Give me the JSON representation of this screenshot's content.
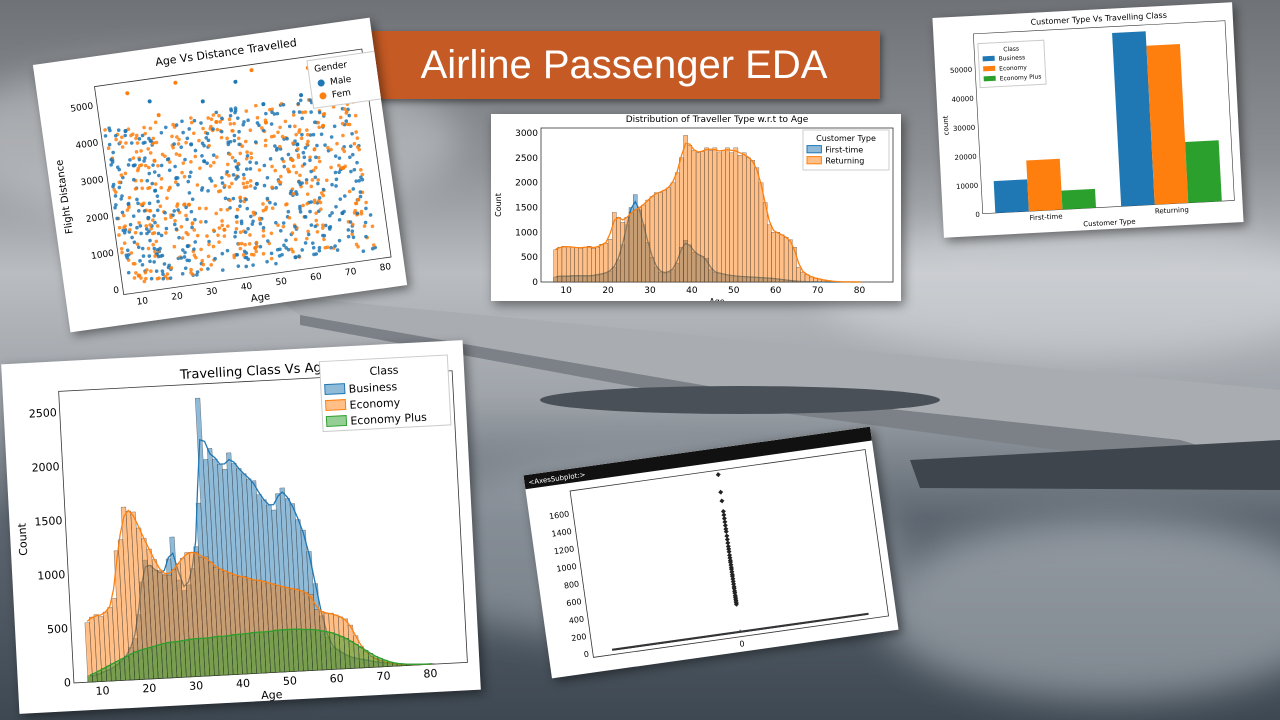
{
  "title": "Airline Passenger EDA",
  "colors": {
    "blue": "#1f77b4",
    "orange": "#ff7f0e",
    "green": "#2ca02c",
    "title_bg": "#c55a24"
  },
  "chart_data": [
    {
      "id": "age_vs_distance",
      "type": "scatter",
      "title": "Age Vs Distance Travelled",
      "xlabel": "Age",
      "ylabel": "Flight Distance",
      "xlim": [
        5,
        82
      ],
      "ylim": [
        -150,
        5500
      ],
      "xticks": [
        "10",
        "20",
        "30",
        "40",
        "50",
        "60",
        "70",
        "80"
      ],
      "yticks": [
        "0",
        "1000",
        "2000",
        "3000",
        "4000",
        "5000"
      ],
      "legend_title": "Gender",
      "legend": [
        "Male",
        "Female"
      ],
      "legend_visible": [
        "Male",
        "Fem"
      ],
      "legend_position": "upper-right",
      "series": [
        {
          "name": "Male",
          "color": "#1f77b4",
          "points": [
            [
              12,
              4200
            ],
            [
              20,
              4900
            ],
            [
              35,
              4700
            ],
            [
              45,
              5100
            ],
            [
              52,
              4400
            ],
            [
              30,
              3600
            ],
            [
              18,
              2500
            ],
            [
              40,
              1500
            ],
            [
              60,
              3200
            ],
            [
              70,
              1200
            ],
            [
              25,
              900
            ],
            [
              55,
              200
            ],
            [
              33,
              3100
            ],
            [
              47,
              2300
            ],
            [
              63,
              4500
            ],
            [
              15,
              1800
            ]
          ]
        },
        {
          "name": "Female",
          "color": "#ff7f0e",
          "points": [
            [
              14,
              5200
            ],
            [
              28,
              5300
            ],
            [
              50,
              5350
            ],
            [
              66,
              5200
            ],
            [
              22,
              4500
            ],
            [
              38,
              4100
            ],
            [
              58,
              2800
            ],
            [
              72,
              2400
            ],
            [
              10,
              300
            ],
            [
              44,
              600
            ],
            [
              68,
              3600
            ],
            [
              27,
              2000
            ],
            [
              36,
              1200
            ],
            [
              52,
              3900
            ],
            [
              75,
              1500
            ],
            [
              19,
              3300
            ]
          ]
        }
      ]
    },
    {
      "id": "traveller_type_age",
      "type": "histogram",
      "title": "Distribution of Traveller Type w.r.t to Age",
      "xlabel": "Age",
      "ylabel": "Count",
      "xlim": [
        4,
        88
      ],
      "ylim": [
        0,
        3100
      ],
      "xticks": [
        10,
        20,
        30,
        40,
        50,
        60,
        70,
        80
      ],
      "yticks": [
        0,
        500,
        1000,
        1500,
        2000,
        2500,
        3000
      ],
      "legend_title": "Customer Type",
      "legend_position": "upper-right",
      "bin_start": 7,
      "bin_width": 1,
      "series": [
        {
          "name": "First-time",
          "color": "#1f77b4",
          "values": [
            100,
            120,
            120,
            110,
            130,
            130,
            120,
            130,
            120,
            130,
            150,
            160,
            180,
            220,
            300,
            450,
            750,
            1150,
            1500,
            1760,
            1450,
            1150,
            800,
            500,
            300,
            200,
            180,
            200,
            250,
            380,
            700,
            840,
            750,
            600,
            550,
            520,
            480,
            250,
            200,
            180,
            160,
            140,
            130,
            120,
            110,
            110,
            100,
            100,
            90,
            90,
            80,
            80,
            70,
            60,
            50,
            40,
            30,
            20,
            15,
            10,
            8,
            5,
            4,
            3,
            2,
            1,
            1,
            1,
            0,
            0,
            0,
            0,
            0,
            0
          ]
        },
        {
          "name": "Returning",
          "color": "#ff7f0e",
          "values": [
            650,
            700,
            720,
            710,
            700,
            700,
            680,
            700,
            720,
            680,
            700,
            760,
            780,
            860,
            1400,
            1300,
            1200,
            1300,
            1400,
            1450,
            1500,
            1550,
            1650,
            1720,
            1800,
            1800,
            1850,
            1900,
            2000,
            2200,
            2500,
            2950,
            2750,
            2650,
            2600,
            2620,
            2700,
            2650,
            2700,
            2600,
            2650,
            2700,
            2600,
            2700,
            2550,
            2600,
            2500,
            2450,
            2300,
            2000,
            1600,
            1150,
            1000,
            1000,
            950,
            900,
            850,
            700,
            300,
            200,
            150,
            100,
            80,
            60,
            40,
            25,
            15,
            10,
            5,
            3,
            2,
            1,
            1,
            0
          ]
        }
      ]
    },
    {
      "id": "customer_type_class",
      "type": "bar",
      "title": "Customer Type Vs Travelling Class",
      "xlabel": "Customer Type",
      "ylabel": "count",
      "categories": [
        "First-time",
        "Returning"
      ],
      "ylim": [
        0,
        62000
      ],
      "yticks": [
        0,
        10000,
        20000,
        30000,
        40000,
        50000
      ],
      "legend_title": "Class",
      "legend_position": "upper-left",
      "series": [
        {
          "name": "Business",
          "color": "#1f77b4",
          "values": [
            11000,
            59800
          ]
        },
        {
          "name": "Economy",
          "color": "#ff7f0e",
          "values": [
            17500,
            54800
          ]
        },
        {
          "name": "Economy Plus",
          "color": "#2ca02c",
          "values": [
            6500,
            21000
          ]
        }
      ]
    },
    {
      "id": "class_vs_age",
      "type": "histogram",
      "title": "Travelling Class Vs Age",
      "xlabel": "Age",
      "ylabel": "Count",
      "xlim": [
        4,
        88
      ],
      "ylim": [
        0,
        2700
      ],
      "xticks": [
        10,
        20,
        30,
        40,
        50,
        60,
        70,
        80
      ],
      "yticks": [
        0,
        500,
        1000,
        1500,
        2000,
        2500
      ],
      "legend_title": "Class",
      "legend_position": "upper-right",
      "bin_start": 7,
      "bin_width": 1,
      "series": [
        {
          "name": "Business",
          "color": "#1f77b4",
          "values": [
            50,
            60,
            70,
            90,
            100,
            120,
            150,
            180,
            220,
            300,
            380,
            600,
            900,
            1100,
            1050,
            1000,
            980,
            950,
            1100,
            1300,
            900,
            800,
            850,
            1000,
            1200,
            1600,
            2570,
            2000,
            2100,
            2000,
            1950,
            1900,
            2050,
            1950,
            1900,
            1850,
            1800,
            1780,
            1650,
            1600,
            1550,
            1500,
            1650,
            1700,
            1600,
            1550,
            1400,
            1300,
            1100,
            800,
            500,
            300,
            200,
            180,
            150,
            120,
            100,
            90,
            80,
            70,
            60,
            50,
            40,
            35,
            30,
            25,
            20,
            15,
            10,
            8,
            6,
            5,
            4,
            3
          ]
        },
        {
          "name": "Economy",
          "color": "#ff7f0e",
          "values": [
            550,
            600,
            620,
            600,
            640,
            680,
            760,
            1200,
            1300,
            1600,
            1560,
            1550,
            1400,
            1300,
            1200,
            1100,
            1000,
            960,
            950,
            1000,
            1050,
            1100,
            1150,
            1150,
            1150,
            1100,
            1100,
            1050,
            1000,
            980,
            960,
            940,
            920,
            900,
            900,
            880,
            860,
            860,
            850,
            830,
            820,
            800,
            790,
            780,
            760,
            760,
            740,
            720,
            700,
            560,
            540,
            520,
            520,
            500,
            480,
            460,
            400,
            300,
            200,
            150,
            100,
            80,
            60,
            40,
            30,
            20,
            15,
            10,
            8,
            5,
            4,
            3,
            2,
            1
          ]
        },
        {
          "name": "Economy Plus",
          "color": "#2ca02c",
          "values": [
            60,
            80,
            100,
            120,
            140,
            160,
            180,
            200,
            220,
            240,
            260,
            270,
            280,
            290,
            300,
            310,
            320,
            330,
            330,
            330,
            340,
            340,
            350,
            350,
            350,
            350,
            350,
            360,
            360,
            360,
            360,
            370,
            370,
            370,
            370,
            380,
            380,
            380,
            380,
            380,
            390,
            390,
            390,
            390,
            390,
            390,
            380,
            380,
            380,
            370,
            360,
            350,
            340,
            320,
            300,
            280,
            250,
            220,
            190,
            160,
            130,
            100,
            80,
            60,
            40,
            30,
            20,
            15,
            10,
            8,
            6,
            4,
            3,
            2
          ]
        }
      ]
    },
    {
      "id": "boxplot",
      "type": "box",
      "header": "<AxesSubplot:>",
      "xticks": [
        "0"
      ],
      "ylim": [
        -50,
        1850
      ],
      "yticks": [
        0,
        200,
        400,
        600,
        800,
        1000,
        1200,
        1400,
        1600
      ],
      "box": {
        "min": 0,
        "q1": 0,
        "median": 0,
        "q3": 12,
        "whisker_high": 30
      },
      "outliers": [
        1800,
        1600,
        1500,
        1380,
        1340,
        1300,
        1260,
        1220,
        1180,
        1150,
        1100,
        1060,
        1020,
        980,
        950,
        920,
        880,
        850,
        820,
        800,
        770,
        740,
        720,
        690,
        660,
        640,
        610,
        580,
        550,
        520,
        500,
        470,
        450,
        420,
        400,
        380,
        360,
        340,
        320
      ]
    }
  ]
}
